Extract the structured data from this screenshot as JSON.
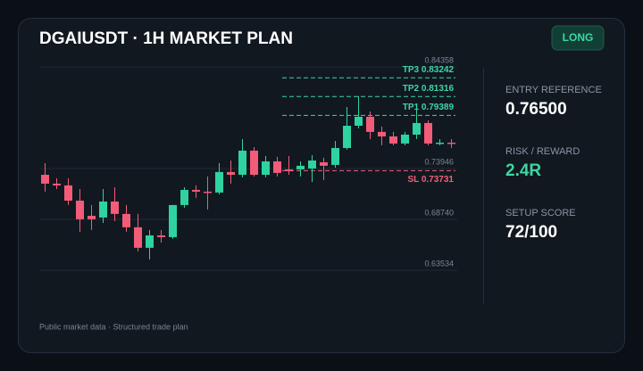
{
  "chart_data": {
    "type": "candlestick",
    "title": "DGAIUSDT · 1H MARKET PLAN",
    "badge": "LONG",
    "open": [
      0.7331,
      0.724,
      0.7222,
      0.7066,
      0.6911,
      0.6893,
      0.7057,
      0.693,
      0.6793,
      0.6583,
      0.671,
      0.6692,
      0.7021,
      0.7176,
      0.7158,
      0.7149,
      0.7359,
      0.7331,
      0.7578,
      0.7331,
      0.7468,
      0.7386,
      0.7386,
      0.7395,
      0.7459,
      0.7432,
      0.7605,
      0.7833,
      0.7925,
      0.777,
      0.7724,
      0.7651,
      0.7742,
      0.7861,
      0.7651,
      0.766
    ],
    "high": [
      0.745,
      0.7295,
      0.7295,
      0.7185,
      0.7021,
      0.7185,
      0.7203,
      0.7021,
      0.693,
      0.6765,
      0.6765,
      0.7021,
      0.7203,
      0.7222,
      0.7313,
      0.745,
      0.7477,
      0.7696,
      0.7614,
      0.7523,
      0.7514,
      0.7523,
      0.7468,
      0.7532,
      0.7505,
      0.7678,
      0.8025,
      0.8135,
      0.7979,
      0.7824,
      0.777,
      0.777,
      0.8025,
      0.7888,
      0.7696,
      0.7696
    ],
    "low": [
      0.7158,
      0.7185,
      0.7021,
      0.6747,
      0.6765,
      0.6838,
      0.6857,
      0.6747,
      0.6546,
      0.6464,
      0.6637,
      0.6674,
      0.6993,
      0.7094,
      0.6975,
      0.713,
      0.724,
      0.7304,
      0.7313,
      0.7304,
      0.7313,
      0.7331,
      0.7313,
      0.7258,
      0.7276,
      0.7404,
      0.7587,
      0.7806,
      0.7696,
      0.7633,
      0.7633,
      0.7633,
      0.7696,
      0.7633,
      0.7633,
      0.7605
    ],
    "close": [
      0.724,
      0.7222,
      0.7066,
      0.6875,
      0.6875,
      0.7057,
      0.693,
      0.6793,
      0.6583,
      0.671,
      0.6692,
      0.7021,
      0.7176,
      0.7158,
      0.7149,
      0.7359,
      0.7331,
      0.7578,
      0.7331,
      0.7468,
      0.735,
      0.7368,
      0.7423,
      0.7477,
      0.7423,
      0.7605,
      0.7833,
      0.7925,
      0.777,
      0.7724,
      0.7651,
      0.7742,
      0.7861,
      0.7651,
      0.766,
      0.7651
    ],
    "up_color": "#2ed3a0",
    "down_color": "#f25c78",
    "ylim": [
      0.63534,
      0.84358
    ],
    "yticks": [
      0.84358,
      0.73946,
      {
        "value": 0.6874,
        "label": "0.68740"
      },
      0.63534
    ],
    "grid": true,
    "levels": [
      {
        "value": 0.83242,
        "label": "TP3 0.83242",
        "color": "#3dd6a3"
      },
      {
        "value": 0.81316,
        "label": "TP2 0.81316",
        "color": "#3dd6a3"
      },
      {
        "value": 0.79389,
        "label": "TP1 0.79389",
        "color": "#3dd6a3"
      },
      {
        "value": 0.73731,
        "label": "SL 0.73731",
        "color": "#f0607a"
      }
    ]
  },
  "panel": [
    {
      "label": "ENTRY REFERENCE",
      "value": "0.76500",
      "color": "#ffffff"
    },
    {
      "label": "RISK / REWARD",
      "value": "2.4R",
      "color": "#3dd6a3"
    },
    {
      "label": "SETUP SCORE",
      "value": "72/100",
      "color": "#ffffff"
    }
  ],
  "footer": "Public market data · Structured trade plan"
}
